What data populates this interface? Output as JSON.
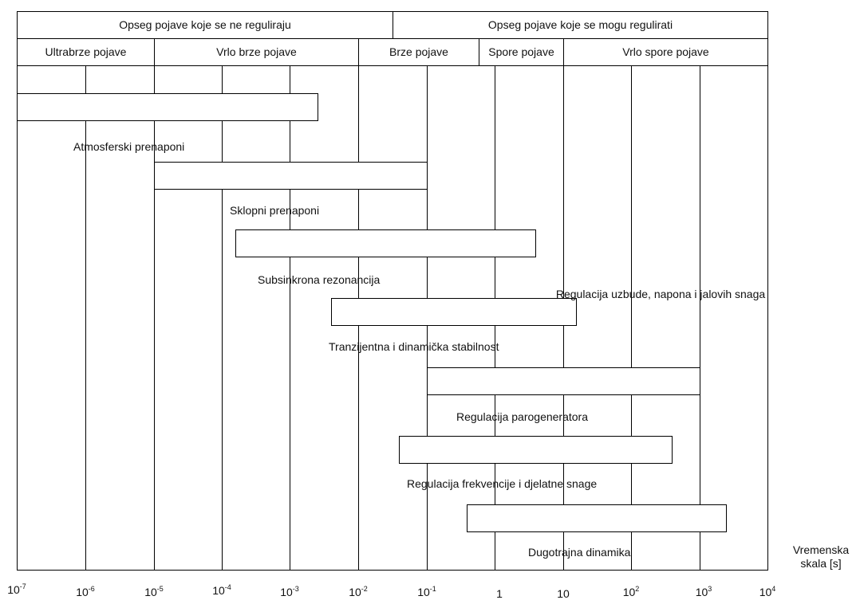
{
  "header": {
    "top": [
      {
        "label": "Opseg pojave koje se ne reguliraju"
      },
      {
        "label": "Opseg pojave koje se mogu regulirati"
      }
    ],
    "second": [
      {
        "label": "Ultrabrze pojave"
      },
      {
        "label": "Vrlo brze pojave"
      },
      {
        "label": "Brze pojave"
      },
      {
        "label": "Spore pojave"
      },
      {
        "label": "Vrlo spore pojave"
      }
    ]
  },
  "phenomena": [
    {
      "label": "Atmosferski prenaponi",
      "range": [
        "1e-7",
        "3e-3"
      ]
    },
    {
      "label": "Sklopni prenaponi",
      "range": [
        "1e-5",
        "1e-1"
      ]
    },
    {
      "label": "Subsinkrona rezonancija",
      "range": [
        "1.5e-4",
        "4"
      ]
    },
    {
      "label": "Regulacija uzbude, napona i jalovih snaga",
      "range": [
        "4e-3",
        "15"
      ]
    },
    {
      "label": "Tranzijentna i dinamička stabilnost",
      "range": [
        "1e-1",
        "1e3"
      ]
    },
    {
      "label": "Regulacija parogeneratora",
      "range": [
        "4e-2",
        "4e2"
      ]
    },
    {
      "label": "Regulacija frekvencije i djelatne snage",
      "range": [
        "0.35",
        "2.5e3"
      ]
    },
    {
      "label": "Dugotrajna dinamika",
      "range": [
        "",
        ""
      ]
    }
  ],
  "axis": {
    "title_line1": "Vremenska",
    "title_line2": "skala [s]",
    "ticks": [
      {
        "base": "10",
        "exp": "-7"
      },
      {
        "base": "10",
        "exp": "-6"
      },
      {
        "base": "10",
        "exp": "-5"
      },
      {
        "base": "10",
        "exp": "-4"
      },
      {
        "base": "10",
        "exp": "-3"
      },
      {
        "base": "10",
        "exp": "-2"
      },
      {
        "base": "10",
        "exp": "-1"
      },
      {
        "base": "1",
        "exp": ""
      },
      {
        "base": "10",
        "exp": ""
      },
      {
        "base": "10",
        "exp": "2"
      },
      {
        "base": "10",
        "exp": "3"
      },
      {
        "base": "10",
        "exp": "4"
      }
    ]
  }
}
